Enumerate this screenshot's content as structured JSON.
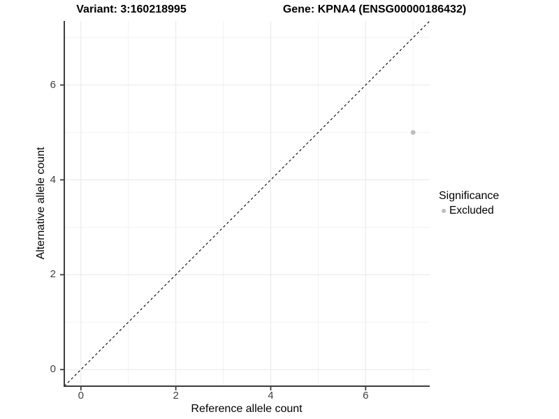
{
  "chart_data": {
    "type": "scatter",
    "title_left": "Variant: 3:160218995",
    "title_right": "Gene: KPNA4 (ENSG00000186432)",
    "xlabel": "Reference allele count",
    "ylabel": "Alternative allele count",
    "xlim": [
      -0.35,
      7.35
    ],
    "ylim": [
      -0.35,
      7.35
    ],
    "x_major_ticks": [
      0,
      2,
      4,
      6
    ],
    "y_major_ticks": [
      0,
      2,
      4,
      6
    ],
    "x_minor_ticks": [
      1,
      3,
      5,
      7
    ],
    "y_minor_ticks": [
      1,
      3,
      5,
      7
    ],
    "grid": true,
    "legend": {
      "title": "Significance",
      "position": "right",
      "entries": [
        {
          "label": "Excluded",
          "color": "#bdbdbd"
        }
      ]
    },
    "series": [
      {
        "name": "Excluded",
        "marker": "circle",
        "color": "#bdbdbd",
        "points": [
          {
            "x": 7,
            "y": 5
          }
        ]
      }
    ],
    "reference_line": {
      "type": "identity",
      "equation": "y = x",
      "style": "dashed",
      "color": "#000000"
    },
    "style": {
      "background": "#ffffff",
      "grid_major_color": "#e8e8e8",
      "grid_minor_color": "#f2f2f2",
      "axis_color": "#3c3c3c",
      "tick_label_color": "#404040",
      "text_color": "#000000"
    }
  }
}
